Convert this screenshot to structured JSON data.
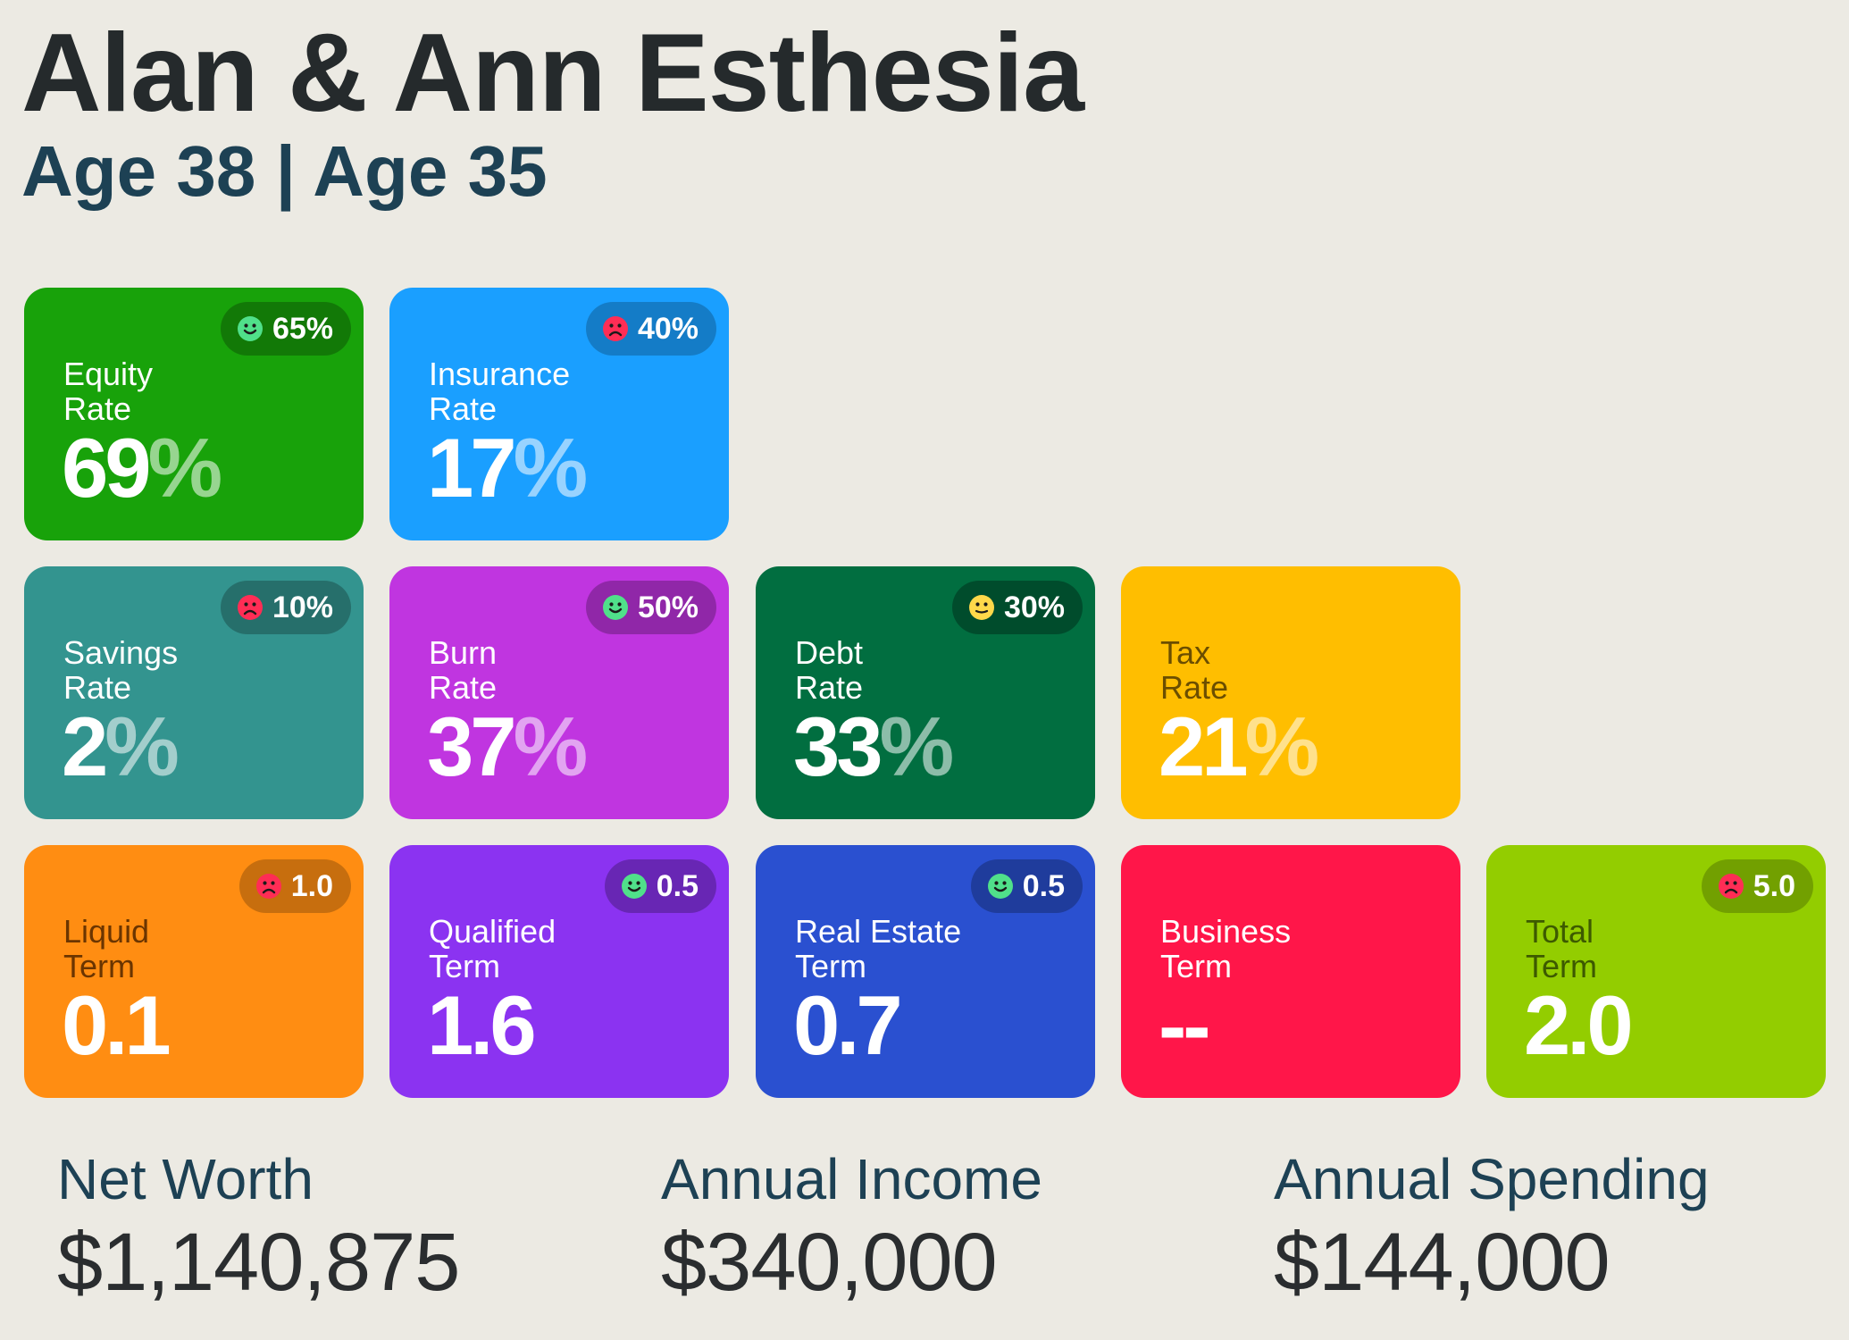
{
  "header": {
    "title": "Alan & Ann Esthesia",
    "subtitle": "Age 38 | Age 35"
  },
  "cards": {
    "equity": {
      "label1": "Equity",
      "label2": "Rate",
      "value": "69",
      "unit": "%",
      "badge": "65%",
      "mood": "happy",
      "color": "#18a20a"
    },
    "insurance": {
      "label1": "Insurance",
      "label2": "Rate",
      "value": "17",
      "unit": "%",
      "badge": "40%",
      "mood": "sad",
      "color": "#1a9fff"
    },
    "savings": {
      "label1": "Savings",
      "label2": "Rate",
      "value": "2",
      "unit": "%",
      "badge": "10%",
      "mood": "sad",
      "color": "#33948f"
    },
    "burn": {
      "label1": "Burn",
      "label2": "Rate",
      "value": "37",
      "unit": "%",
      "badge": "50%",
      "mood": "happy",
      "color": "#c035e0"
    },
    "debt": {
      "label1": "Debt",
      "label2": "Rate",
      "value": "33",
      "unit": "%",
      "badge": "30%",
      "mood": "neutral",
      "color": "#016e40"
    },
    "tax": {
      "label1": "Tax",
      "label2": "Rate",
      "value": "21",
      "unit": "%",
      "color": "#ffbe00"
    },
    "liquid": {
      "label1": "Liquid",
      "label2": "Term",
      "value": "0.1",
      "badge": "1.0",
      "mood": "sad",
      "color": "#ff8d12"
    },
    "qualified": {
      "label1": "Qualified",
      "label2": "Term",
      "value": "1.6",
      "badge": "0.5",
      "mood": "happy",
      "color": "#8b33f1"
    },
    "real_estate": {
      "label1": "Real Estate",
      "label2": "Term",
      "value": "0.7",
      "badge": "0.5",
      "mood": "happy",
      "color": "#2a50d0"
    },
    "business": {
      "label1": "Business",
      "label2": "Term",
      "value": "--",
      "color": "#ff1649"
    },
    "total": {
      "label1": "Total",
      "label2": "Term",
      "value": "2.0",
      "badge": "5.0",
      "mood": "sad",
      "color": "#93cd00"
    }
  },
  "summary": {
    "net_worth": {
      "label": "Net Worth",
      "value": "$1,140,875"
    },
    "annual_income": {
      "label": "Annual Income",
      "value": "$340,000"
    },
    "annual_spending": {
      "label": "Annual Spending",
      "value": "$144,000"
    }
  },
  "colors": {
    "happy": "#50e08a",
    "sad": "#ff2d55",
    "neutral": "#ffd84a",
    "dark_label": "#6b4e00"
  }
}
